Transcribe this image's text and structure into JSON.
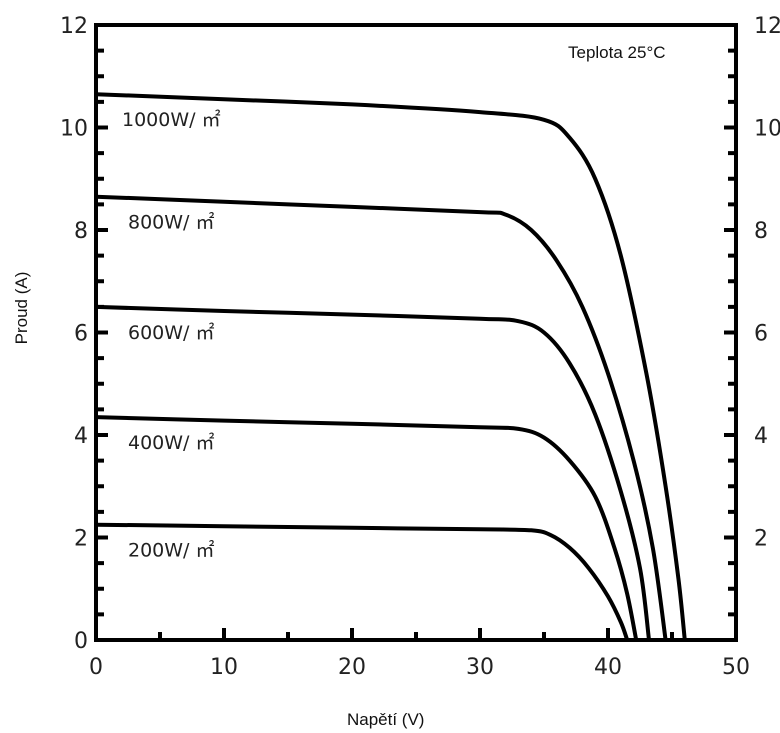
{
  "chart_data": {
    "type": "line",
    "title": "",
    "annotation": "Teplota 25°C",
    "xlabel": "Napětí (V)",
    "ylabel": "Proud (A)",
    "xlim": [
      0,
      50
    ],
    "ylim": [
      0,
      12
    ],
    "x_ticks": [
      0,
      10,
      20,
      30,
      40,
      50
    ],
    "y_ticks_left": [
      0,
      2,
      4,
      6,
      8,
      10,
      12
    ],
    "y_ticks_right": [
      2,
      4,
      6,
      8,
      10,
      12
    ],
    "grid": false,
    "line_color": "#000000",
    "series": [
      {
        "name": "1000W/ ㎡",
        "points": [
          [
            0,
            10.65
          ],
          [
            10,
            10.55
          ],
          [
            20,
            10.45
          ],
          [
            30,
            10.3
          ],
          [
            35,
            10.15
          ],
          [
            37,
            9.8
          ],
          [
            39,
            9.0
          ],
          [
            41,
            7.5
          ],
          [
            43,
            5.2
          ],
          [
            44.5,
            3.0
          ],
          [
            45.5,
            1.2
          ],
          [
            46,
            0
          ]
        ]
      },
      {
        "name": "800W/ ㎡",
        "points": [
          [
            0,
            8.65
          ],
          [
            10,
            8.55
          ],
          [
            20,
            8.45
          ],
          [
            30,
            8.35
          ],
          [
            32,
            8.3
          ],
          [
            34,
            8.0
          ],
          [
            36,
            7.4
          ],
          [
            38,
            6.5
          ],
          [
            40,
            5.2
          ],
          [
            42,
            3.5
          ],
          [
            43.5,
            1.8
          ],
          [
            44.5,
            0
          ]
        ]
      },
      {
        "name": "600W/ ㎡",
        "points": [
          [
            0,
            6.5
          ],
          [
            10,
            6.42
          ],
          [
            20,
            6.35
          ],
          [
            30,
            6.27
          ],
          [
            33,
            6.22
          ],
          [
            35,
            6.0
          ],
          [
            37,
            5.4
          ],
          [
            39,
            4.4
          ],
          [
            41,
            2.9
          ],
          [
            42.5,
            1.4
          ],
          [
            43.2,
            0
          ]
        ]
      },
      {
        "name": "400W/ ㎡",
        "points": [
          [
            0,
            4.35
          ],
          [
            10,
            4.28
          ],
          [
            20,
            4.22
          ],
          [
            30,
            4.15
          ],
          [
            33,
            4.12
          ],
          [
            35,
            3.95
          ],
          [
            37,
            3.5
          ],
          [
            39,
            2.8
          ],
          [
            40.5,
            1.8
          ],
          [
            41.5,
            0.9
          ],
          [
            42.2,
            0
          ]
        ]
      },
      {
        "name": "200W/ ㎡",
        "points": [
          [
            0,
            2.25
          ],
          [
            10,
            2.22
          ],
          [
            20,
            2.19
          ],
          [
            30,
            2.16
          ],
          [
            34,
            2.14
          ],
          [
            35.5,
            2.05
          ],
          [
            37,
            1.8
          ],
          [
            38.5,
            1.4
          ],
          [
            40,
            0.85
          ],
          [
            41,
            0.35
          ],
          [
            41.5,
            0
          ]
        ]
      }
    ]
  }
}
